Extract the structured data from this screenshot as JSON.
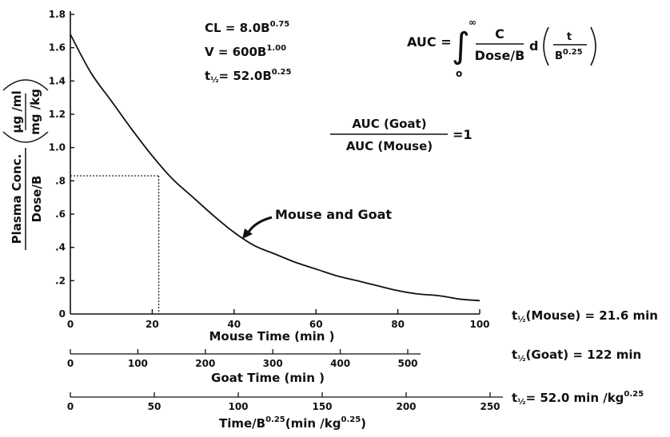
{
  "chart_data": {
    "type": "line",
    "series": [
      {
        "name": "Mouse and Goat",
        "x": [
          0,
          5,
          10,
          15,
          20,
          25,
          30,
          35,
          40,
          45,
          50,
          55,
          60,
          65,
          70,
          75,
          80,
          85,
          90,
          95,
          100
        ],
        "values": [
          1.68,
          1.45,
          1.28,
          1.11,
          0.95,
          0.81,
          0.7,
          0.59,
          0.49,
          0.41,
          0.36,
          0.31,
          0.27,
          0.23,
          0.2,
          0.17,
          0.14,
          0.12,
          0.11,
          0.09,
          0.08
        ]
      }
    ],
    "xlim": [
      0,
      100
    ],
    "ylim": [
      0,
      1.8
    ],
    "grid": false,
    "ylabel_main": "Plasma Conc.",
    "ylabel_paren_num": "μg /ml",
    "ylabel_paren_den": "mg /kg",
    "ylabel_den": "Dose/B",
    "xlabel": "Mouse Time (min )",
    "y_ticks": [
      {
        "v": 0,
        "label": "0"
      },
      {
        "v": 0.2,
        "label": ".2"
      },
      {
        "v": 0.4,
        "label": ".4"
      },
      {
        "v": 0.6,
        "label": ".6"
      },
      {
        "v": 0.8,
        "label": ".8"
      },
      {
        "v": 1.0,
        "label": "1.0"
      },
      {
        "v": 1.2,
        "label": "1.2"
      },
      {
        "v": 1.4,
        "label": "1.4"
      },
      {
        "v": 1.6,
        "label": "1.6"
      },
      {
        "v": 1.8,
        "label": "1.8"
      }
    ],
    "x_ticks": [
      {
        "v": 20,
        "label": "20"
      },
      {
        "v": 40,
        "label": "40"
      },
      {
        "v": 60,
        "label": "60"
      },
      {
        "v": 80,
        "label": "80"
      },
      {
        "v": 100,
        "label": "100"
      }
    ],
    "x_origin_label": "0",
    "guide_point": {
      "x": 21.6,
      "y": 0.83
    },
    "series_annotation": "Mouse and Goat",
    "secondary_axes": [
      {
        "xlim": [
          0,
          500
        ],
        "ticks": [
          {
            "v": 0,
            "label": "0"
          },
          {
            "v": 100,
            "label": "100"
          },
          {
            "v": 200,
            "label": "200"
          },
          {
            "v": 300,
            "label": "300"
          },
          {
            "v": 400,
            "label": "400"
          },
          {
            "v": 500,
            "label": "500"
          }
        ],
        "xlabel": "Goat Time (min )"
      },
      {
        "xlim": [
          0,
          250
        ],
        "ticks": [
          {
            "v": 0,
            "label": "0"
          },
          {
            "v": 50,
            "label": "50"
          },
          {
            "v": 100,
            "label": "100"
          },
          {
            "v": 150,
            "label": "150"
          },
          {
            "v": 200,
            "label": "200"
          },
          {
            "v": 250,
            "label": "250"
          }
        ],
        "xlabel_pre": "Time/B",
        "xlabel_sup": "0.25",
        "xlabel_mid": "(min /kg",
        "xlabel_sup2": "0.25",
        "xlabel_post": ")"
      }
    ],
    "annotations": {
      "cl_pre": "CL = 8.0B",
      "cl_exp": "0.75",
      "v_pre": "V  = 600B",
      "v_exp": "1.00",
      "th_t": "t",
      "th_half": "½",
      "th_mid": "= 52.0B",
      "th_exp": "0.25",
      "auc_lhs": "AUC =",
      "auc_integral": "∫",
      "auc_upper": "∞",
      "auc_lower": "o",
      "auc_frac_num": "C",
      "auc_frac_den": "Dose/B",
      "auc_d": "d",
      "auc_paren_num": "t",
      "auc_paren_den_pre": "B",
      "auc_paren_den_exp": "0.25",
      "ratio_num": "AUC (Goat)",
      "ratio_den": "AUC (Mouse)",
      "ratio_rhs": "=1",
      "mouse_half_t": "t",
      "mouse_half_half": "½",
      "mouse_half_rest": "(Mouse) = 21.6 min",
      "goat_half_t": "t",
      "goat_half_half": "½",
      "goat_half_rest": "(Goat) = 122 min",
      "scaled_half_t": "t",
      "scaled_half_half": "½",
      "scaled_half_rest": "= 52.0 min /kg",
      "scaled_half_exp": "0.25"
    }
  }
}
